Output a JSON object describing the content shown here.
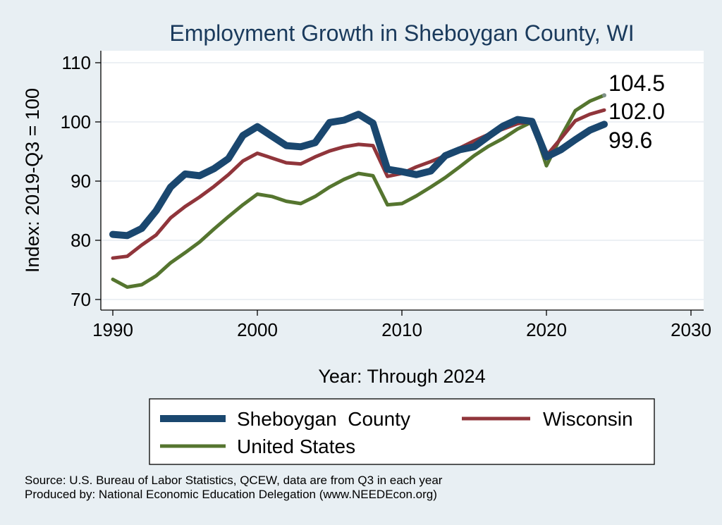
{
  "chart_data": {
    "type": "line",
    "title": "Employment Growth in Sheboygan County, WI",
    "xlabel": "Year: Through 2024",
    "ylabel": "Index: 2019-Q3 = 100",
    "xlim": [
      1990,
      2030
    ],
    "ylim": [
      70,
      110
    ],
    "x_ticks": [
      1990,
      2000,
      2010,
      2020,
      2030
    ],
    "y_ticks": [
      70,
      80,
      90,
      100,
      110
    ],
    "x": [
      1990,
      1991,
      1992,
      1993,
      1994,
      1995,
      1996,
      1997,
      1998,
      1999,
      2000,
      2001,
      2002,
      2003,
      2004,
      2005,
      2006,
      2007,
      2008,
      2009,
      2010,
      2011,
      2012,
      2013,
      2014,
      2015,
      2016,
      2017,
      2018,
      2019,
      2020,
      2021,
      2022,
      2023,
      2024
    ],
    "series": [
      {
        "name": "Sheboygan  County",
        "color": "#1a476f",
        "values": [
          81.0,
          80.8,
          82.0,
          85.0,
          89.0,
          91.2,
          90.9,
          92.1,
          93.8,
          97.7,
          99.2,
          97.6,
          96.0,
          95.8,
          96.5,
          99.9,
          100.3,
          101.3,
          99.8,
          92.0,
          91.6,
          91.1,
          91.7,
          94.3,
          95.3,
          95.8,
          97.6,
          99.3,
          100.4,
          100.1,
          94.1,
          95.3,
          97.0,
          98.6,
          99.6
        ]
      },
      {
        "name": "Wisconsin",
        "color": "#90353b",
        "values": [
          77.0,
          77.3,
          79.2,
          80.9,
          83.8,
          85.7,
          87.3,
          89.1,
          91.1,
          93.4,
          94.7,
          93.9,
          93.1,
          92.9,
          94.1,
          95.1,
          95.8,
          96.2,
          96.0,
          90.8,
          91.3,
          92.4,
          93.3,
          94.3,
          95.6,
          96.8,
          97.9,
          98.8,
          99.7,
          100.1,
          94.3,
          97.2,
          100.2,
          101.3,
          102.0
        ]
      },
      {
        "name": "United States",
        "color": "#55752f",
        "values": [
          73.4,
          72.1,
          72.5,
          74.0,
          76.2,
          77.9,
          79.7,
          81.9,
          84.0,
          86.0,
          87.8,
          87.4,
          86.6,
          86.2,
          87.4,
          89.0,
          90.3,
          91.3,
          90.9,
          86.0,
          86.2,
          87.5,
          89.0,
          90.6,
          92.4,
          94.3,
          95.9,
          97.2,
          98.8,
          100.0,
          92.6,
          97.5,
          101.9,
          103.5,
          104.5
        ]
      }
    ],
    "end_labels": [
      "104.5",
      "102.0",
      "99.6"
    ],
    "legend": {
      "placement": "bottom",
      "entries": [
        "Sheboygan  County",
        "Wisconsin",
        "United States"
      ]
    },
    "grid": true
  },
  "notes": {
    "source": "Source: U.S. Bureau of Labor Statistics, QCEW, data are from Q3 in each year",
    "produced_by": "Produced by: National Economic Education Delegation (www.NEEDEcon.org)"
  },
  "colors": {
    "background": "#e8eff3",
    "plot_background": "#ffffff",
    "grid": "#e6ecf0",
    "title": "#1a3a5c"
  }
}
